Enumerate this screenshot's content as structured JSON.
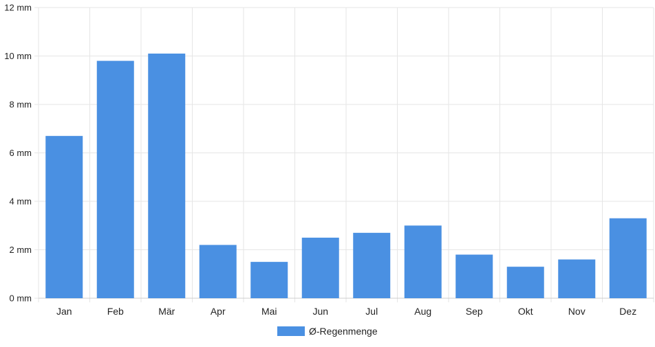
{
  "chart_data": {
    "type": "bar",
    "categories": [
      "Jan",
      "Feb",
      "Mär",
      "Apr",
      "Mai",
      "Jun",
      "Jul",
      "Aug",
      "Sep",
      "Okt",
      "Nov",
      "Dez"
    ],
    "series": [
      {
        "name": "Ø-Regenmenge",
        "values": [
          6.7,
          9.8,
          10.1,
          2.2,
          1.5,
          2.5,
          2.7,
          3.0,
          1.8,
          1.3,
          1.6,
          3.3
        ]
      }
    ],
    "yticks": [
      "0 mm",
      "2 mm",
      "4 mm",
      "6 mm",
      "8 mm",
      "10 mm",
      "12 mm"
    ],
    "ylim": [
      0,
      12
    ],
    "grid": true,
    "legend_position": "bottom",
    "colors": {
      "bar": "#4a90e2",
      "grid": "#e5e5e5",
      "axis": "#cccccc",
      "text": "#222222"
    }
  }
}
